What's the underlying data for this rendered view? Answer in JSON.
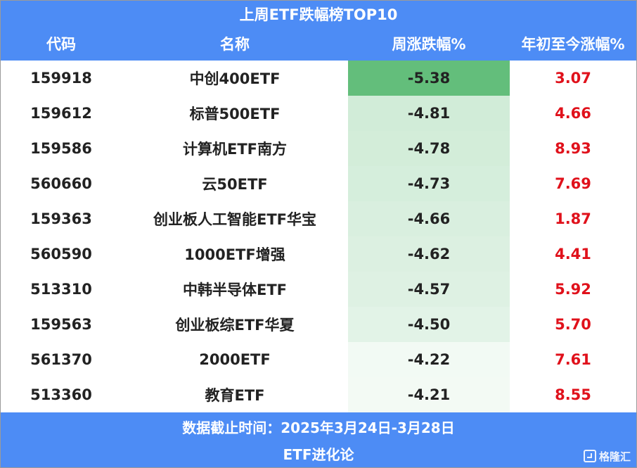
{
  "title": "上周ETF跌幅榜TOP10",
  "columns": {
    "code": "代码",
    "name": "名称",
    "week": "周涨跌幅%",
    "ytd": "年初至今涨幅%"
  },
  "colors": {
    "header_bg": "#4d8cf5",
    "ytd_text": "#e0111b",
    "heat_strong": "#63be7b",
    "heat_weak": "#ffffff"
  },
  "chart_data": {
    "type": "table",
    "title": "上周ETF跌幅榜TOP10",
    "columns": [
      "代码",
      "名称",
      "周涨跌幅%",
      "年初至今涨幅%"
    ],
    "rows": [
      {
        "code": "159918",
        "name": "中创400ETF",
        "week": "-5.38",
        "ytd": "3.07"
      },
      {
        "code": "159612",
        "name": "标普500ETF",
        "week": "-4.81",
        "ytd": "4.66"
      },
      {
        "code": "159586",
        "name": "计算机ETF南方",
        "week": "-4.78",
        "ytd": "8.93"
      },
      {
        "code": "560660",
        "name": "云50ETF",
        "week": "-4.73",
        "ytd": "7.69"
      },
      {
        "code": "159363",
        "name": "创业板人工智能ETF华宝",
        "week": "-4.66",
        "ytd": "1.87"
      },
      {
        "code": "560590",
        "name": "1000ETF增强",
        "week": "-4.62",
        "ytd": "4.41"
      },
      {
        "code": "513310",
        "name": "中韩半导体ETF",
        "week": "-4.57",
        "ytd": "5.92"
      },
      {
        "code": "159563",
        "name": "创业板综ETF华夏",
        "week": "-4.50",
        "ytd": "5.70"
      },
      {
        "code": "561370",
        "name": "2000ETF",
        "week": "-4.22",
        "ytd": "7.61"
      },
      {
        "code": "513360",
        "name": "教育ETF",
        "week": "-4.21",
        "ytd": "8.55"
      }
    ]
  },
  "footer": {
    "date_range": "数据截止时间：2025年3月24日-3月28日",
    "source": "ETF进化论"
  },
  "watermark": {
    "icon": "gelonghui-logo-icon",
    "text": "格隆汇"
  }
}
